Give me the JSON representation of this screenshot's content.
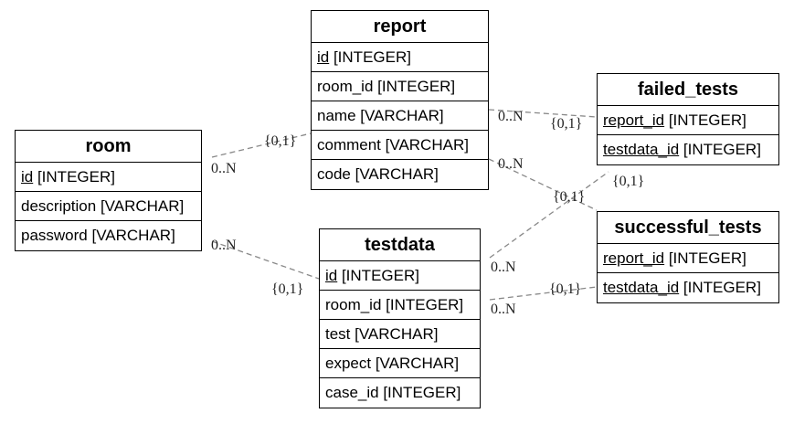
{
  "entities": {
    "room": {
      "name": "room",
      "attrs": [
        {
          "name": "id",
          "type": " [INTEGER]"
        },
        {
          "name": "description",
          "type": " [VARCHAR]"
        },
        {
          "name": "password",
          "type": " [VARCHAR]"
        }
      ]
    },
    "report": {
      "name": "report",
      "attrs": [
        {
          "name": "id",
          "type": " [INTEGER]"
        },
        {
          "name": "room_id",
          "type": " [INTEGER]"
        },
        {
          "name": "name",
          "type": " [VARCHAR]"
        },
        {
          "name": "comment",
          "type": " [VARCHAR]"
        },
        {
          "name": "code",
          "type": " [VARCHAR]"
        }
      ]
    },
    "testdata": {
      "name": "testdata",
      "attrs": [
        {
          "name": "id",
          "type": " [INTEGER]"
        },
        {
          "name": "room_id",
          "type": " [INTEGER]"
        },
        {
          "name": "test",
          "type": " [VARCHAR]"
        },
        {
          "name": "expect",
          "type": " [VARCHAR]"
        },
        {
          "name": "case_id",
          "type": " [INTEGER]"
        }
      ]
    },
    "failed_tests": {
      "name": "failed_tests",
      "attrs": [
        {
          "name": "report_id",
          "type": " [INTEGER]"
        },
        {
          "name": "testdata_id",
          "type": " [INTEGER]"
        }
      ]
    },
    "successful_tests": {
      "name": "successful_tests",
      "attrs": [
        {
          "name": "report_id",
          "type": " [INTEGER]"
        },
        {
          "name": "testdata_id",
          "type": " [INTEGER]"
        }
      ]
    }
  },
  "cardinality": {
    "many": "0..N",
    "optional_one": "{0,1}"
  }
}
